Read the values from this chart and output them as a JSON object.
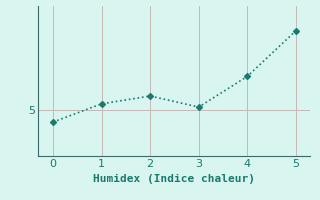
{
  "x": [
    0,
    1,
    2,
    3,
    4,
    5
  ],
  "y": [
    4.82,
    5.1,
    5.22,
    5.05,
    5.52,
    6.22
  ],
  "line_color": "#1a7a6e",
  "bg_color": "#d8f5f0",
  "grid_color": "#c8b8b8",
  "xlabel": "Humidex (Indice chaleur)",
  "xlabel_fontsize": 8,
  "tick_fontsize": 8,
  "ylim": [
    4.3,
    6.6
  ],
  "xlim": [
    -0.3,
    5.3
  ],
  "yticks": [
    5
  ],
  "xticks": [
    0,
    1,
    2,
    3,
    4,
    5
  ]
}
